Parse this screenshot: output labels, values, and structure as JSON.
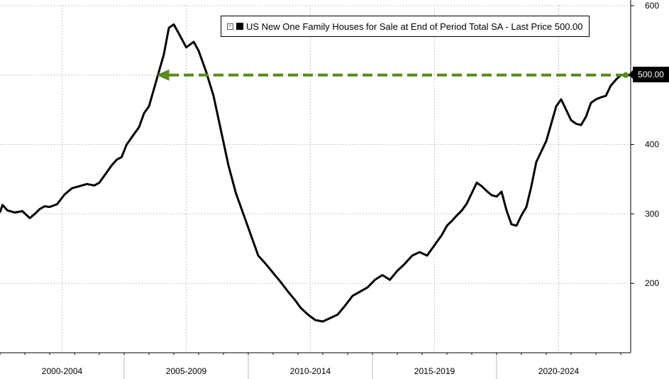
{
  "chart_data": {
    "type": "line",
    "title": "",
    "legend": {
      "label": "US New One Family Houses for Sale at End of Period Total SA - Last Price 500.00",
      "placement": "top-right"
    },
    "last_value_label": "500.00",
    "xlabel": "",
    "ylabel": "",
    "x_categories": [
      "2000-2004",
      "2005-2009",
      "2010-2014",
      "2015-2019",
      "2020-2024"
    ],
    "x_range": [
      2000.0,
      2025.4
    ],
    "yticks": [
      "200",
      "300",
      "400",
      "500",
      "600"
    ],
    "ylim": [
      100,
      600
    ],
    "grid": true,
    "line_color": "#000000",
    "annotation_color": "#5a8a1a",
    "series": [
      {
        "x": [
          2000.0,
          2000.1,
          2000.3,
          2000.6,
          2000.9,
          2001.2,
          2001.4,
          2001.6,
          2001.8,
          2002.0,
          2002.3,
          2002.6,
          2002.9,
          2003.2,
          2003.5,
          2003.8,
          2004.0,
          2004.2,
          2004.5,
          2004.7,
          2004.9,
          2005.1,
          2005.4,
          2005.6,
          2005.8,
          2006.0,
          2006.2,
          2006.4,
          2006.6,
          2006.8,
          2007.0,
          2007.2,
          2007.5,
          2007.8,
          2008.0,
          2008.3,
          2008.6,
          2008.9,
          2009.2,
          2009.5,
          2009.8,
          2010.1,
          2010.4,
          2010.7,
          2011.0,
          2011.3,
          2011.6,
          2011.9,
          2012.1,
          2012.4,
          2012.7,
          2013.0,
          2013.3,
          2013.6,
          2013.9,
          2014.2,
          2014.5,
          2014.8,
          2015.1,
          2015.4,
          2015.7,
          2016.0,
          2016.3,
          2016.6,
          2016.9,
          2017.2,
          2017.5,
          2017.8,
          2018.0,
          2018.2,
          2018.4,
          2018.6,
          2018.8,
          2019.0,
          2019.2,
          2019.4,
          2019.6,
          2019.8,
          2020.0,
          2020.2,
          2020.4,
          2020.6,
          2020.8,
          2021.0,
          2021.2,
          2021.4,
          2021.6,
          2021.8,
          2022.0,
          2022.2,
          2022.4,
          2022.6,
          2022.8,
          2023.0,
          2023.2,
          2023.4,
          2023.6,
          2023.8,
          2024.0,
          2024.2,
          2024.4,
          2024.6,
          2024.8,
          2025.0,
          2025.2,
          2025.4
        ],
        "y": [
          302,
          313,
          305,
          302,
          304,
          294,
          300,
          307,
          311,
          310,
          314,
          328,
          337,
          340,
          343,
          341,
          345,
          355,
          370,
          378,
          382,
          400,
          415,
          425,
          445,
          455,
          480,
          505,
          530,
          568,
          573,
          560,
          540,
          548,
          535,
          505,
          470,
          420,
          370,
          330,
          300,
          270,
          240,
          228,
          215,
          202,
          188,
          175,
          165,
          155,
          147,
          145,
          150,
          155,
          168,
          182,
          188,
          194,
          205,
          212,
          205,
          218,
          228,
          240,
          245,
          240,
          255,
          270,
          283,
          290,
          298,
          305,
          315,
          330,
          345,
          340,
          333,
          327,
          325,
          332,
          305,
          285,
          283,
          298,
          310,
          340,
          375,
          390,
          405,
          430,
          455,
          465,
          450,
          435,
          430,
          428,
          440,
          460,
          465,
          468,
          470,
          485,
          493,
          500,
          500,
          500
        ]
      }
    ],
    "annotation": {
      "from_x": 2025.2,
      "to_x": 2006.3,
      "y": 500
    }
  }
}
